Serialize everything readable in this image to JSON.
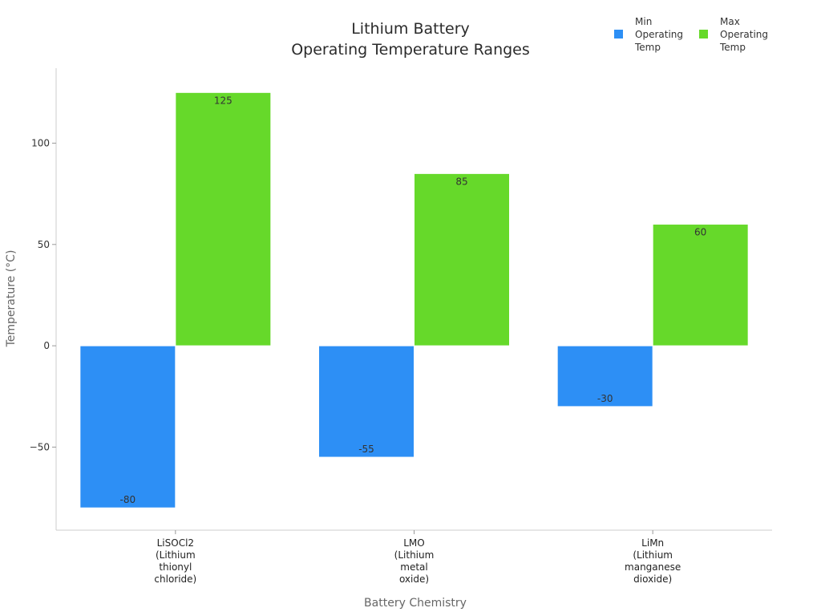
{
  "chart_data": {
    "type": "bar",
    "title": [
      "Lithium Battery",
      "Operating Temperature Ranges"
    ],
    "xlabel": "Battery Chemistry",
    "ylabel": "Temperature (°C)",
    "categories": [
      [
        "LiSOCl2",
        "(Lithium",
        "thionyl",
        "chloride)"
      ],
      [
        "LMO",
        "(Lithium",
        "metal",
        "oxide)"
      ],
      [
        "LiMn",
        "(Lithium",
        "manganese",
        "dioxide)"
      ]
    ],
    "series": [
      {
        "name": [
          "Min",
          "Operating",
          "Temp"
        ],
        "values": [
          -80,
          -55,
          -30
        ],
        "color": "#2d8ff5"
      },
      {
        "name": [
          "Max",
          "Operating",
          "Temp"
        ],
        "values": [
          125,
          85,
          60
        ],
        "color": "#66d92a"
      }
    ],
    "ylim": [
      -91,
      137
    ],
    "yticks": [
      -50,
      0,
      50,
      100
    ],
    "ytick_labels": [
      "−50",
      "0",
      "50",
      "100"
    ],
    "data_labels": [
      [
        "-80",
        "-55",
        "-30"
      ],
      [
        "125",
        "85",
        "60"
      ]
    ],
    "legend_position": "top-right",
    "grid": false
  }
}
